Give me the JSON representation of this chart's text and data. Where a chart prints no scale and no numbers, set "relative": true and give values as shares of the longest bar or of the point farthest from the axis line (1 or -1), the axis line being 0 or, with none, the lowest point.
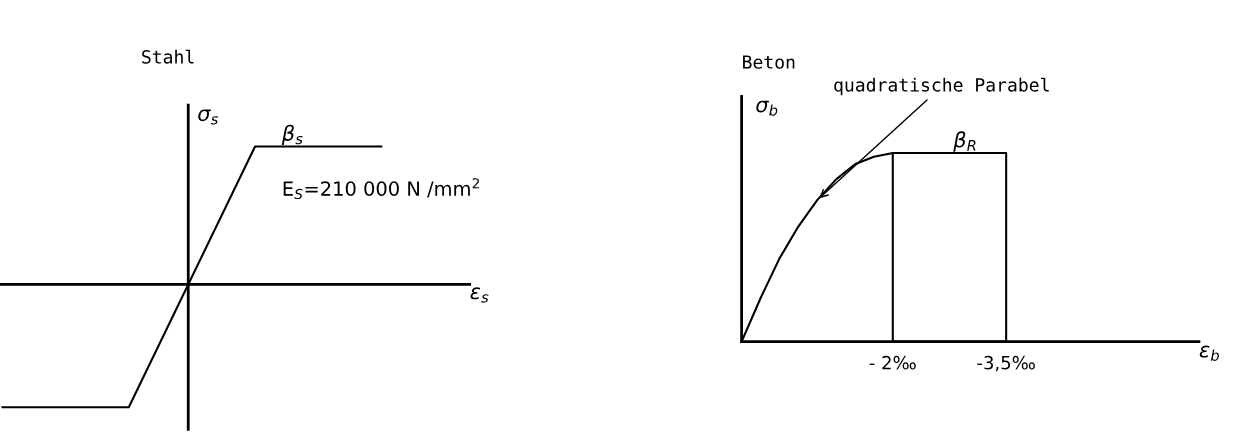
{
  "chart_data": [
    {
      "type": "line",
      "title": "Stahl",
      "xlabel": "ε$_{s}$",
      "ylabel": "σ$_{s}$",
      "relative": true,
      "grid": false,
      "categories": [
        null,
        null,
        null,
        null
      ],
      "series": [
        {
          "color": "#000000",
          "values": [
            -0.89,
            -0.89,
            1,
            1
          ]
        }
      ],
      "annotations": [
        "E$_{S}$=210 000 N /mm$^{2}$",
        "β$_{s}$"
      ]
    },
    {
      "type": "line",
      "title": "Beton",
      "xlabel": "ε$_{b}$",
      "ylabel": "σ$_{b}$",
      "relative": true,
      "grid": false,
      "xlim": [
        0,
        -6.05
      ],
      "xticks": [
        {
          "value": -2,
          "label": "- 2‰"
        },
        {
          "value": -3.5,
          "label": "-3,5‰"
        }
      ],
      "series": [
        {
          "color": "#000000",
          "x": [
            0,
            -0.25,
            -0.5,
            -0.75,
            -1,
            -1.25,
            -1.5,
            -1.75,
            -2,
            -3.5,
            -3.5,
            -2,
            -2
          ],
          "values": [
            0,
            0.23,
            0.44,
            0.61,
            0.75,
            0.86,
            0.94,
            0.98,
            1,
            1,
            0,
            0,
            1
          ]
        }
      ],
      "annotations": [
        {
          "text": "quadratische Parabel",
          "x": -1.0,
          "y": 0.75
        },
        {
          "text": "β$_{R}$",
          "x": -2.8,
          "y": 1
        }
      ]
    }
  ]
}
